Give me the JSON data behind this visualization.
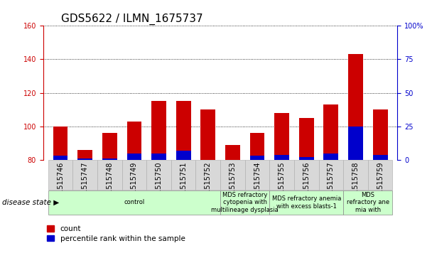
{
  "title": "GDS5622 / ILMN_1675737",
  "samples": [
    "GSM1515746",
    "GSM1515747",
    "GSM1515748",
    "GSM1515749",
    "GSM1515750",
    "GSM1515751",
    "GSM1515752",
    "GSM1515753",
    "GSM1515754",
    "GSM1515755",
    "GSM1515756",
    "GSM1515757",
    "GSM1515758",
    "GSM1515759"
  ],
  "count_values": [
    100,
    86,
    96,
    103,
    115,
    115,
    110,
    89,
    96,
    108,
    105,
    113,
    143,
    110
  ],
  "percentile_values": [
    3,
    1,
    1,
    5,
    5,
    7,
    0,
    0,
    3,
    4,
    2,
    5,
    25,
    4
  ],
  "bar_bottom": 80,
  "ylim_left": [
    80,
    160
  ],
  "ylim_right": [
    0,
    100
  ],
  "yticks_left": [
    80,
    100,
    120,
    140,
    160
  ],
  "yticks_right": [
    0,
    25,
    50,
    75,
    100
  ],
  "count_color": "#cc0000",
  "percentile_color": "#0000cc",
  "disease_groups": [
    {
      "label": "control",
      "start": 0,
      "end": 7
    },
    {
      "label": "MDS refractory\ncytopenia with\nmultilineage dysplasia",
      "start": 7,
      "end": 9
    },
    {
      "label": "MDS refractory anemia\nwith excess blasts-1",
      "start": 9,
      "end": 12
    },
    {
      "label": "MDS\nrefractory ane\nmia with",
      "start": 12,
      "end": 14
    }
  ],
  "disease_group_color": "#ccffcc",
  "disease_state_label": "disease state",
  "legend_count": "count",
  "legend_percentile": "percentile rank within the sample",
  "bg_color": "#ffffff",
  "plot_bg": "#ffffff",
  "xtick_bg": "#d8d8d8",
  "grid_color": "#000000",
  "bar_width": 0.6,
  "title_fontsize": 11,
  "tick_fontsize": 7,
  "label_fontsize": 7.5
}
